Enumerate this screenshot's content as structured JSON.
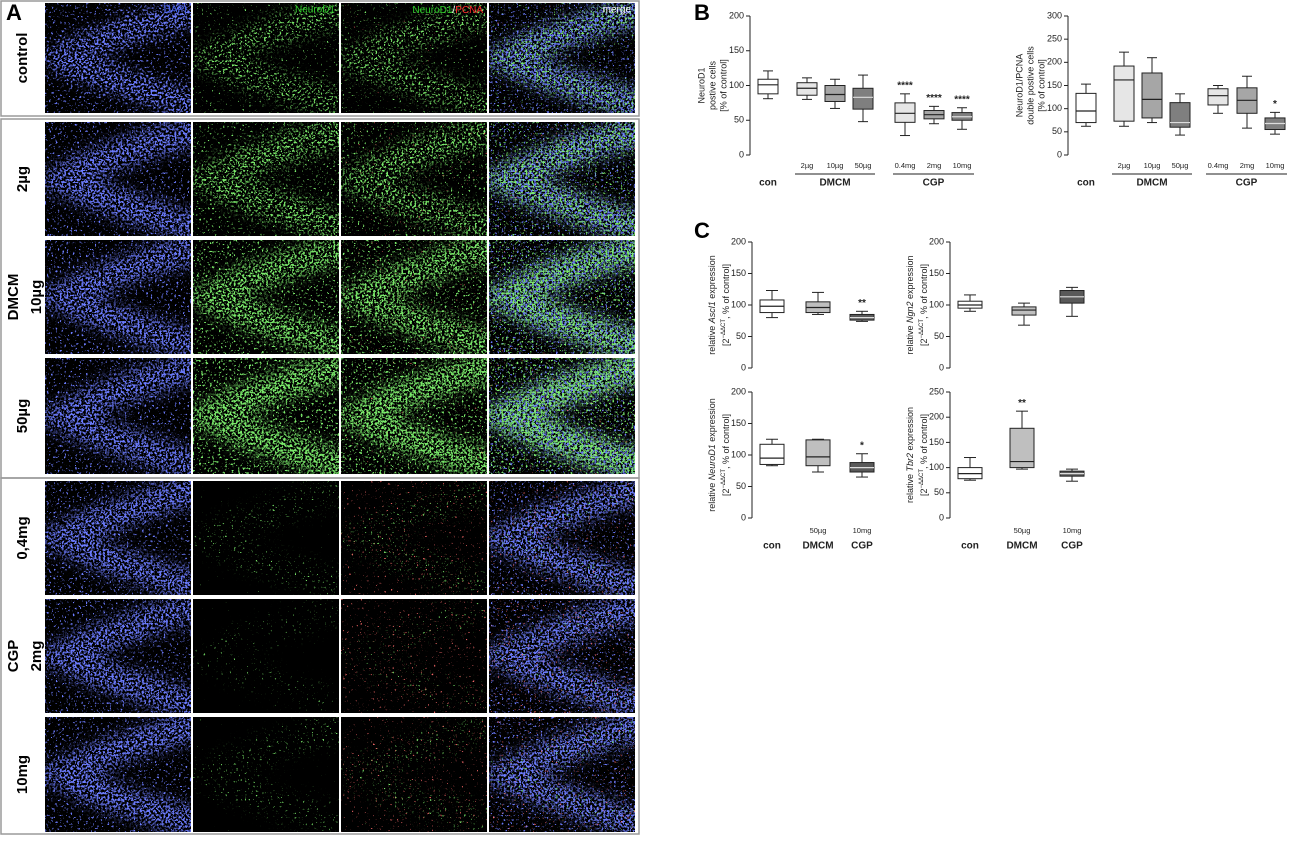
{
  "panel_a": {
    "label": "A",
    "columns": [
      "DAPI",
      "NeuroD1",
      [
        "NeuroD1",
        "/",
        "PCNA"
      ],
      "merge"
    ],
    "blocks": [
      {
        "group": null,
        "rows": [
          "control"
        ]
      },
      {
        "group": "DMCM",
        "rows": [
          "2µg",
          "10µg",
          "50µg"
        ]
      },
      {
        "group": "CGP",
        "rows": [
          "0,4mg",
          "2mg",
          "10mg"
        ]
      }
    ]
  },
  "panel_b_label": "B",
  "panel_c_label": "C",
  "chart_data": [
    {
      "type": "box",
      "y_label": [
        "NeuroD1",
        "postive cells",
        "[% of control]"
      ],
      "ylim": [
        0,
        200
      ],
      "yticks": [
        0,
        50,
        100,
        150,
        200
      ],
      "groups": [
        {
          "label": "con",
          "boxes": [
            {
              "label": null,
              "color": "#ffffff",
              "min": 81,
              "q1": 88,
              "median": 101,
              "q3": 109,
              "max": 121
            }
          ]
        },
        {
          "label": "DMCM",
          "boxes": [
            {
              "label": "2µg",
              "color": "#e6e6e6",
              "min": 80,
              "q1": 86,
              "median": 96,
              "q3": 104,
              "max": 111
            },
            {
              "label": "10µg",
              "color": "#a6a6a6",
              "min": 67,
              "q1": 77,
              "median": 87,
              "q3": 100,
              "max": 109
            },
            {
              "label": "50µg",
              "color": "#7f7f7f",
              "min": 48,
              "q1": 66,
              "median": 83,
              "q3": 96,
              "max": 115
            }
          ]
        },
        {
          "label": "CGP",
          "boxes": [
            {
              "label": "0.4mg",
              "color": "#e6e6e6",
              "min": 28,
              "q1": 47,
              "median": 60,
              "q3": 75,
              "max": 88,
              "annotation": "****"
            },
            {
              "label": "2mg",
              "color": "#a6a6a6",
              "min": 45,
              "q1": 52,
              "median": 58,
              "q3": 64,
              "max": 70,
              "annotation": "****"
            },
            {
              "label": "10mg",
              "color": "#7f7f7f",
              "min": 37,
              "q1": 50,
              "median": 55,
              "q3": 61,
              "max": 68,
              "annotation": "****"
            }
          ]
        }
      ]
    },
    {
      "type": "box",
      "y_label": [
        "NeuroD1/PCNA",
        "double postive cells",
        "[% of control]"
      ],
      "ylim": [
        0,
        300
      ],
      "yticks": [
        0,
        50,
        100,
        150,
        200,
        250,
        300
      ],
      "groups": [
        {
          "label": "con",
          "boxes": [
            {
              "label": null,
              "color": "#ffffff",
              "min": 62,
              "q1": 70,
              "median": 95,
              "q3": 133,
              "max": 153
            }
          ]
        },
        {
          "label": "DMCM",
          "boxes": [
            {
              "label": "2µg",
              "color": "#e6e6e6",
              "min": 62,
              "q1": 73,
              "median": 162,
              "q3": 192,
              "max": 222
            },
            {
              "label": "10µg",
              "color": "#a6a6a6",
              "min": 70,
              "q1": 80,
              "median": 120,
              "q3": 177,
              "max": 210
            },
            {
              "label": "50µg",
              "color": "#7f7f7f",
              "min": 43,
              "q1": 60,
              "median": 70,
              "q3": 113,
              "max": 132
            }
          ]
        },
        {
          "label": "CGP",
          "boxes": [
            {
              "label": "0.4mg",
              "color": "#e6e6e6",
              "min": 90,
              "q1": 108,
              "median": 128,
              "q3": 143,
              "max": 150
            },
            {
              "label": "2mg",
              "color": "#a6a6a6",
              "min": 58,
              "q1": 90,
              "median": 118,
              "q3": 145,
              "max": 170
            },
            {
              "label": "10mg",
              "color": "#7f7f7f",
              "min": 45,
              "q1": 55,
              "median": 68,
              "q3": 80,
              "max": 92,
              "annotation": "*"
            }
          ]
        }
      ]
    },
    {
      "type": "box",
      "y_label": {
        "before": "relative ",
        "gene": "Ascl1",
        "after": " expression",
        "base": "[2",
        "exponent": "−ΔΔCT",
        "tail": ", % of control]"
      },
      "ylim": [
        0,
        200
      ],
      "yticks": [
        0,
        50,
        100,
        150,
        200
      ],
      "groups": [
        {
          "label": null,
          "boxes": [
            {
              "label": null,
              "color": "#ffffff",
              "min": 80,
              "q1": 88,
              "median": 98,
              "q3": 108,
              "max": 123
            }
          ]
        },
        {
          "label": null,
          "boxes": [
            {
              "label": null,
              "color": "#bfbfbf",
              "min": 85,
              "q1": 88,
              "median": 96,
              "q3": 105,
              "max": 120
            }
          ]
        },
        {
          "label": null,
          "boxes": [
            {
              "label": null,
              "color": "#595959",
              "min": 74,
              "q1": 76,
              "median": 80,
              "q3": 85,
              "max": 90,
              "annotation": "**"
            }
          ]
        }
      ]
    },
    {
      "type": "box",
      "y_label": {
        "before": "relative ",
        "gene": "Ngn2",
        "after": " expression",
        "base": "[2",
        "exponent": "−ΔΔCT",
        "tail": ", % of control]"
      },
      "ylim": [
        0,
        200
      ],
      "yticks": [
        0,
        50,
        100,
        150,
        200
      ],
      "groups": [
        {
          "label": null,
          "boxes": [
            {
              "label": null,
              "color": "#ffffff",
              "min": 90,
              "q1": 95,
              "median": 100,
              "q3": 106,
              "max": 116
            }
          ]
        },
        {
          "label": null,
          "boxes": [
            {
              "label": null,
              "color": "#bfbfbf",
              "min": 68,
              "q1": 84,
              "median": 92,
              "q3": 97,
              "max": 103
            }
          ]
        },
        {
          "label": null,
          "boxes": [
            {
              "label": null,
              "color": "#595959",
              "min": 82,
              "q1": 103,
              "median": 113,
              "q3": 123,
              "max": 128
            }
          ]
        }
      ]
    },
    {
      "type": "box",
      "y_label": {
        "before": "relative ",
        "gene": "NeuroD1",
        "after": " expression",
        "base": "[2",
        "exponent": "−ΔΔCT",
        "tail": ", % of control]"
      },
      "ylim": [
        0,
        200
      ],
      "yticks": [
        0,
        50,
        100,
        150,
        200
      ],
      "groups": [
        {
          "label": "con",
          "boxes": [
            {
              "label": null,
              "color": "#ffffff",
              "min": 83,
              "q1": 85,
              "median": 95,
              "q3": 117,
              "max": 125
            }
          ]
        },
        {
          "label": "DMCM",
          "boxes": [
            {
              "label": "50µg",
              "color": "#bfbfbf",
              "min": 73,
              "q1": 83,
              "median": 97,
              "q3": 124,
              "max": 125
            }
          ]
        },
        {
          "label": "CGP",
          "boxes": [
            {
              "label": "10mg",
              "color": "#595959",
              "min": 65,
              "q1": 73,
              "median": 80,
              "q3": 88,
              "max": 102,
              "annotation": "*"
            }
          ]
        }
      ]
    },
    {
      "type": "box",
      "y_label": {
        "before": "relative ",
        "gene": "Tbr2",
        "after": " expression",
        "base": "[2",
        "exponent": "−ΔΔCT",
        "tail": ", % of control]"
      },
      "ylim": [
        0,
        250
      ],
      "yticks": [
        0,
        50,
        100,
        150,
        200,
        250
      ],
      "groups": [
        {
          "label": "con",
          "boxes": [
            {
              "label": null,
              "color": "#ffffff",
              "min": 75,
              "q1": 78,
              "median": 88,
              "q3": 100,
              "max": 120
            }
          ]
        },
        {
          "label": "DMCM",
          "boxes": [
            {
              "label": "50µg",
              "color": "#bfbfbf",
              "min": 97,
              "q1": 100,
              "median": 112,
              "q3": 178,
              "max": 212,
              "annotation": "**"
            }
          ]
        },
        {
          "label": "CGP",
          "boxes": [
            {
              "label": "10mg",
              "color": "#595959",
              "min": 73,
              "q1": 83,
              "median": 88,
              "q3": 93,
              "max": 97
            }
          ]
        }
      ]
    }
  ]
}
